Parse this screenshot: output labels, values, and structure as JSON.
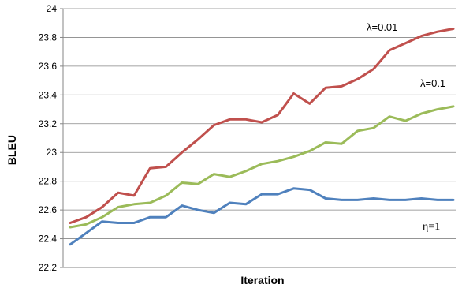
{
  "chart_data": {
    "type": "line",
    "title": "",
    "xlabel": "Iteration",
    "ylabel": "BLEU",
    "ylim": [
      22.2,
      24
    ],
    "yticks": [
      "22.2",
      "22.4",
      "22.6",
      "22.8",
      "23",
      "23.2",
      "23.4",
      "23.6",
      "23.8",
      "24"
    ],
    "grid": "horizontal",
    "legend": "none (inline labels near line ends)",
    "x": [
      1,
      2,
      3,
      4,
      5,
      6,
      7,
      8,
      9,
      10,
      11,
      12,
      13,
      14,
      15,
      16,
      17,
      18,
      19,
      20,
      21,
      22,
      23,
      24,
      25
    ],
    "series": [
      {
        "name": "λ=0.01",
        "color": "#c0504d",
        "values": [
          22.51,
          22.55,
          22.62,
          22.72,
          22.7,
          22.89,
          22.9,
          23.0,
          23.09,
          23.19,
          23.23,
          23.23,
          23.21,
          23.26,
          23.41,
          23.34,
          23.45,
          23.46,
          23.51,
          23.58,
          23.71,
          23.76,
          23.81,
          23.84,
          23.86
        ]
      },
      {
        "name": "λ=0.1",
        "color": "#9bbb59",
        "values": [
          22.48,
          22.5,
          22.55,
          22.62,
          22.64,
          22.65,
          22.7,
          22.79,
          22.78,
          22.85,
          22.83,
          22.87,
          22.92,
          22.94,
          22.97,
          23.01,
          23.07,
          23.06,
          23.15,
          23.17,
          23.25,
          23.22,
          23.27,
          23.3,
          23.32
        ]
      },
      {
        "name": "η=1",
        "color": "#4f81bd",
        "values": [
          22.36,
          22.44,
          22.52,
          22.51,
          22.51,
          22.55,
          22.55,
          22.63,
          22.6,
          22.58,
          22.65,
          22.64,
          22.71,
          22.71,
          22.75,
          22.74,
          22.68,
          22.67,
          22.67,
          22.68,
          22.67,
          22.67,
          22.68,
          22.67,
          22.67
        ]
      }
    ],
    "axis_color": "#868686",
    "grid_color": "#868686"
  }
}
